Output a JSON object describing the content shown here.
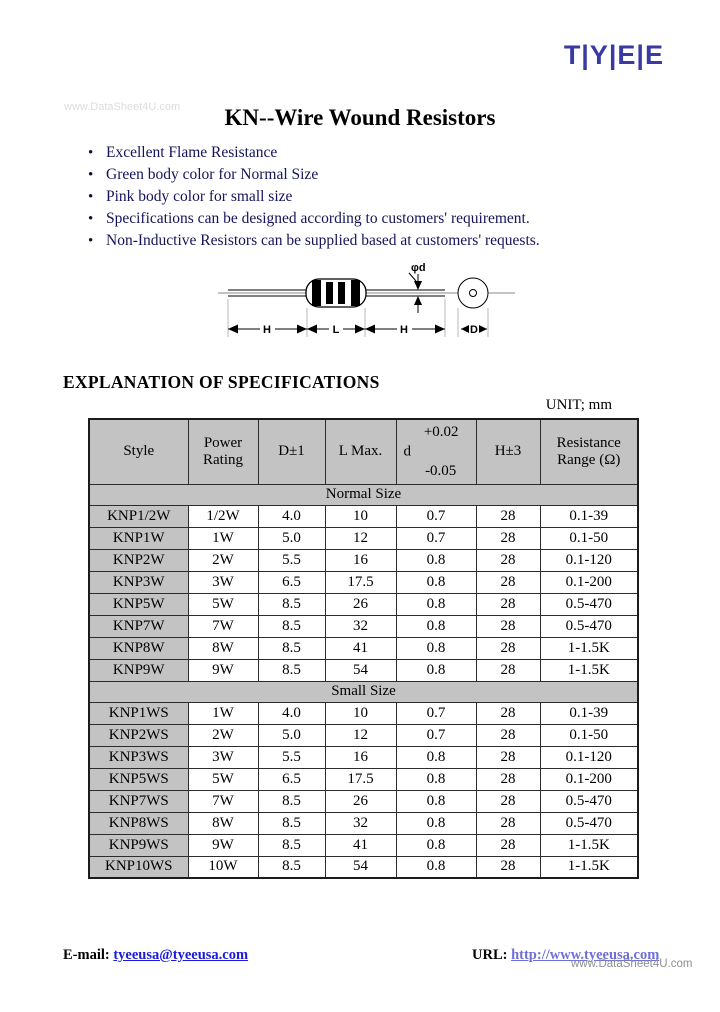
{
  "logo_text": "T|Y|E|E",
  "watermark_top": "www.DataSheet4U.com",
  "watermark_bottom": "www.DataSheet4U.com",
  "title": "KN--Wire Wound Resistors",
  "bullets": [
    "Excellent Flame Resistance",
    "Green body color for Normal Size",
    "Pink body color for small size",
    "Specifications can be designed according to customers' requirement.",
    "Non-Inductive Resistors can be supplied based at customers' requests."
  ],
  "diagram": {
    "lead_dia_label": "φd",
    "dim_h_left": "H",
    "dim_l": "L",
    "dim_h_right": "H",
    "dim_d": "D"
  },
  "section_heading": "EXPLANATION OF SPECIFICATIONS",
  "unit_label": "UNIT; mm",
  "table": {
    "columns": {
      "style": "Style",
      "power": "Power Rating",
      "d_body": "D±1",
      "l_max": "L Max.",
      "lead_d": "d",
      "lead_tol_plus": "+0.02",
      "lead_tol_minus": "-0.05",
      "h": "H±3",
      "resistance": "Resistance Range (Ω)"
    },
    "sections": [
      {
        "label": "Normal Size",
        "rows": [
          [
            "KNP1/2W",
            "1/2W",
            "4.0",
            "10",
            "0.7",
            "28",
            "0.1-39"
          ],
          [
            "KNP1W",
            "1W",
            "5.0",
            "12",
            "0.7",
            "28",
            "0.1-50"
          ],
          [
            "KNP2W",
            "2W",
            "5.5",
            "16",
            "0.8",
            "28",
            "0.1-120"
          ],
          [
            "KNP3W",
            "3W",
            "6.5",
            "17.5",
            "0.8",
            "28",
            "0.1-200"
          ],
          [
            "KNP5W",
            "5W",
            "8.5",
            "26",
            "0.8",
            "28",
            "0.5-470"
          ],
          [
            "KNP7W",
            "7W",
            "8.5",
            "32",
            "0.8",
            "28",
            "0.5-470"
          ],
          [
            "KNP8W",
            "8W",
            "8.5",
            "41",
            "0.8",
            "28",
            "1-1.5K"
          ],
          [
            "KNP9W",
            "9W",
            "8.5",
            "54",
            "0.8",
            "28",
            "1-1.5K"
          ]
        ]
      },
      {
        "label": "Small Size",
        "rows": [
          [
            "KNP1WS",
            "1W",
            "4.0",
            "10",
            "0.7",
            "28",
            "0.1-39"
          ],
          [
            "KNP2WS",
            "2W",
            "5.0",
            "12",
            "0.7",
            "28",
            "0.1-50"
          ],
          [
            "KNP3WS",
            "3W",
            "5.5",
            "16",
            "0.8",
            "28",
            "0.1-120"
          ],
          [
            "KNP5WS",
            "5W",
            "6.5",
            "17.5",
            "0.8",
            "28",
            "0.1-200"
          ],
          [
            "KNP7WS",
            "7W",
            "8.5",
            "26",
            "0.8",
            "28",
            "0.5-470"
          ],
          [
            "KNP8WS",
            "8W",
            "8.5",
            "32",
            "0.8",
            "28",
            "0.5-470"
          ],
          [
            "KNP9WS",
            "9W",
            "8.5",
            "41",
            "0.8",
            "28",
            "1-1.5K"
          ],
          [
            "KNP10WS",
            "10W",
            "8.5",
            "54",
            "0.8",
            "28",
            "1-1.5K"
          ]
        ]
      }
    ]
  },
  "footer": {
    "email_label": "E-mail:",
    "email": "tyeeusa@tyeeusa.com",
    "url_label": "URL:",
    "url": "http://www.tyeeusa.com"
  },
  "colors": {
    "logo": "#3a3aa5",
    "bullet_text": "#14145a",
    "table_header_bg": "#c3c3c3",
    "email_link": "#1b1be0",
    "url_link": "#6f6fd8",
    "watermark_gray": "#8f8f8f"
  }
}
